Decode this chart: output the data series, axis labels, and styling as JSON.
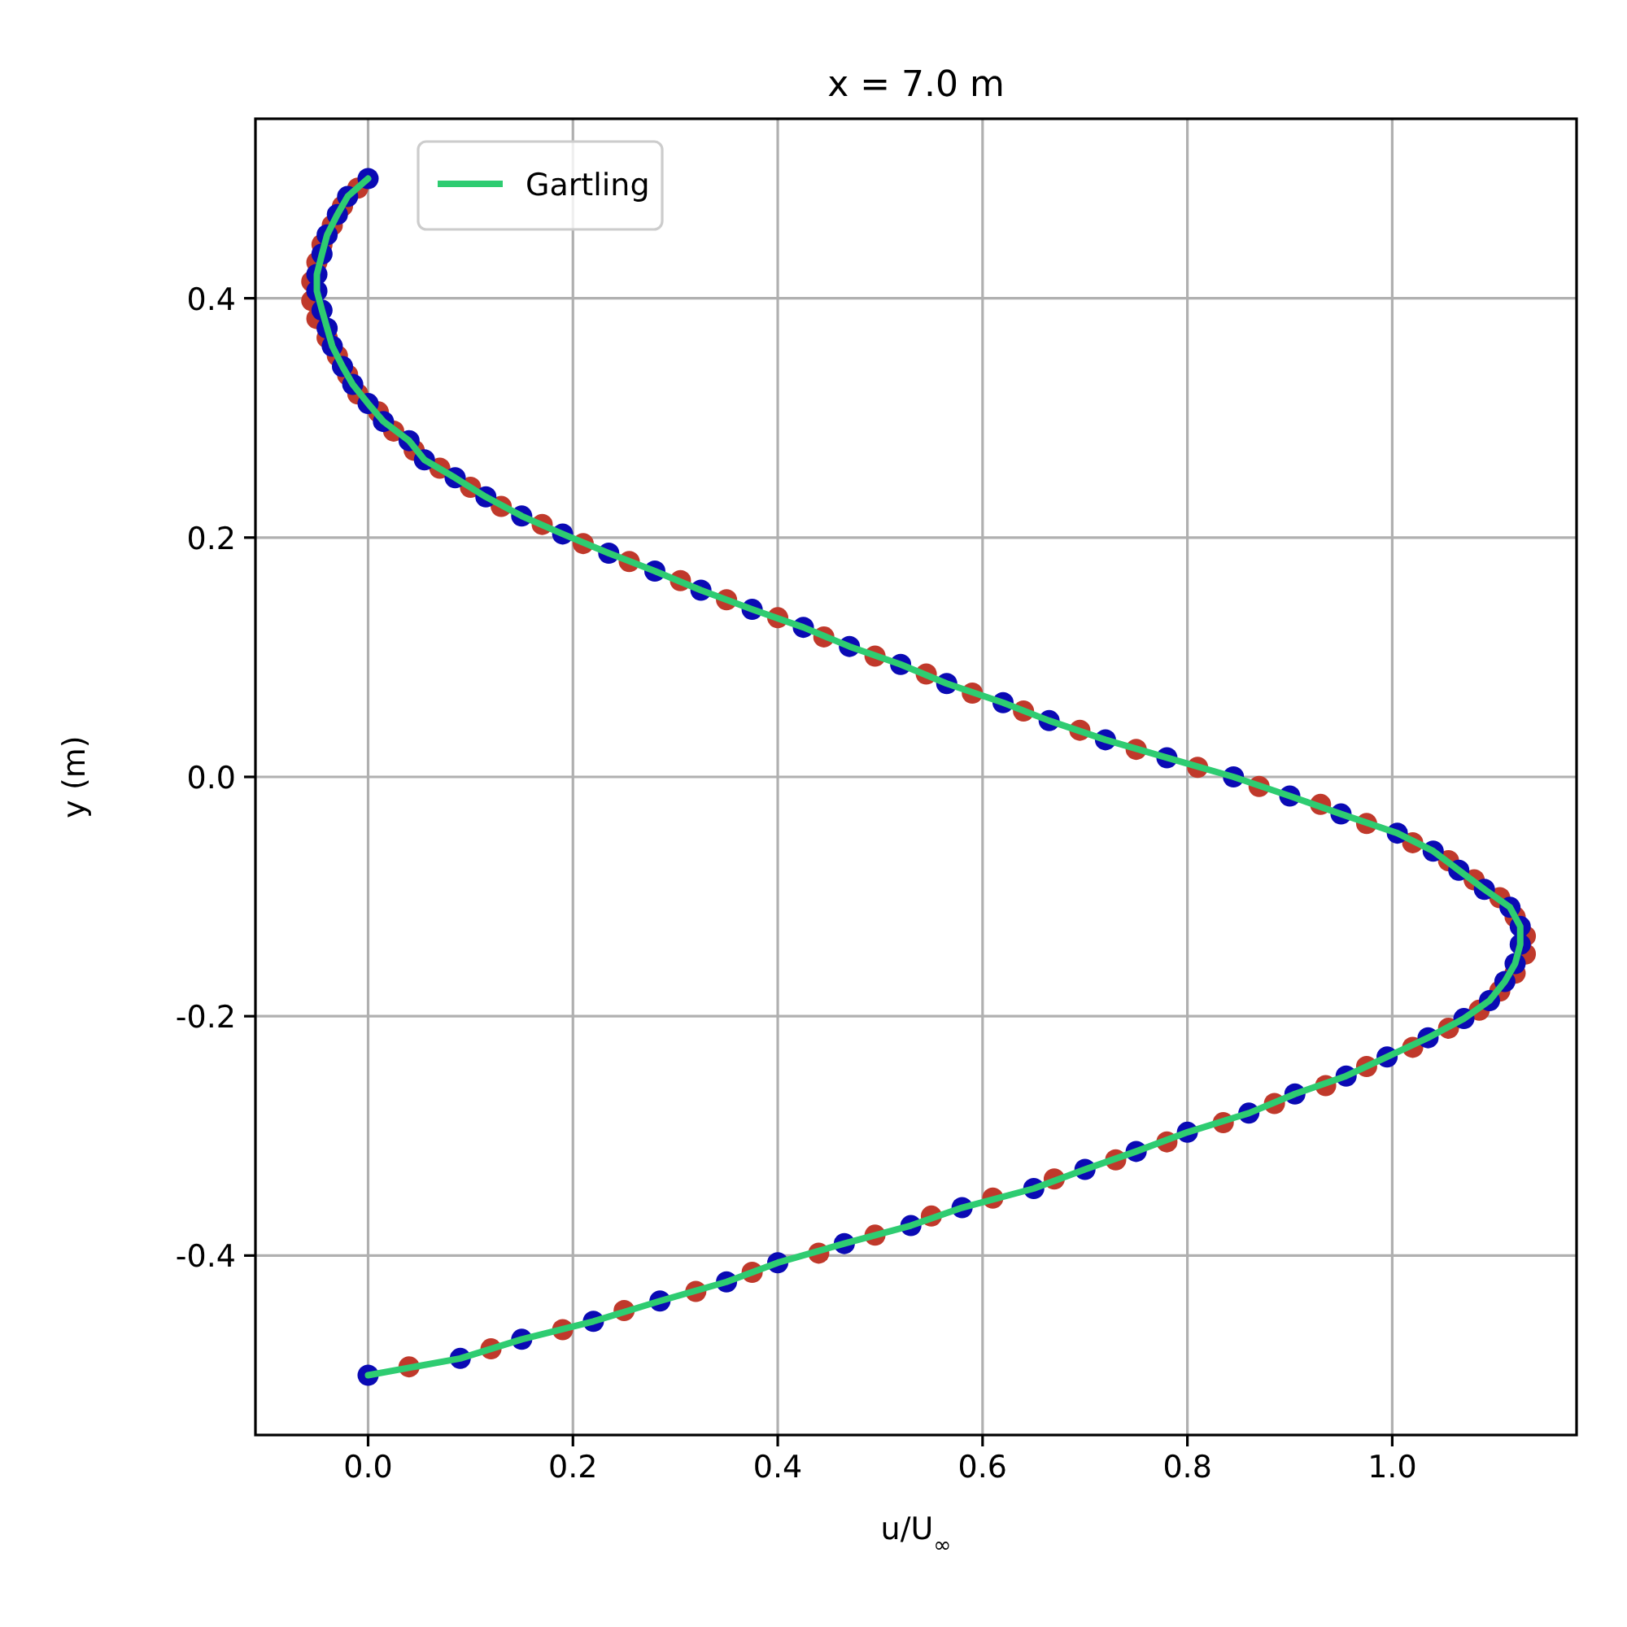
{
  "chart_data": {
    "type": "line",
    "title": "x = 7.0 m",
    "xlabel": "u/U$_{∞}$",
    "ylabel": "y (m)",
    "xlim": [
      -0.11,
      1.18
    ],
    "ylim": [
      -0.55,
      0.55
    ],
    "xticks": [
      {
        "value": 0,
        "label": "0.0"
      },
      0.2,
      0.4,
      0.6,
      0.8,
      {
        "value": 1,
        "label": "1.0"
      }
    ],
    "yticks": [
      -0.4,
      -0.2,
      {
        "value": 0,
        "label": "0.0"
      },
      0.2,
      0.4
    ],
    "grid": true,
    "legend": "top left",
    "series": [
      {
        "name": "Gartling",
        "color": "#2ecc71",
        "marker": "none",
        "line_style": "solid",
        "x": [
          0,
          0.09,
          0.15,
          0.22,
          0.285,
          0.35,
          0.4,
          0.465,
          0.53,
          0.58,
          0.65,
          0.7,
          0.75,
          0.8,
          0.86,
          0.905,
          0.955,
          0.995,
          1.035,
          1.07,
          1.095,
          1.11,
          1.12,
          1.125,
          1.125,
          1.115,
          1.09,
          1.065,
          1.04,
          1.005,
          0.95,
          0.9,
          0.845,
          0.78,
          0.72,
          0.665,
          0.62,
          0.565,
          0.52,
          0.47,
          0.425,
          0.375,
          0.325,
          0.28,
          0.235,
          0.19,
          0.15,
          0.115,
          0.085,
          0.055,
          0.04,
          0.015,
          0.0,
          -0.015,
          -0.025,
          -0.035,
          -0.04,
          -0.045,
          -0.05,
          -0.05,
          -0.045,
          -0.04,
          -0.03,
          -0.02,
          0.0
        ],
        "values": [
          -0.5,
          -0.486,
          -0.47,
          -0.455,
          -0.438,
          -0.422,
          -0.406,
          -0.39,
          -0.375,
          -0.36,
          -0.344,
          -0.328,
          -0.313,
          -0.297,
          -0.281,
          -0.265,
          -0.25,
          -0.234,
          -0.218,
          -0.202,
          -0.187,
          -0.171,
          -0.156,
          -0.14,
          -0.125,
          -0.109,
          -0.094,
          -0.078,
          -0.062,
          -0.047,
          -0.031,
          -0.016,
          0.0,
          0.016,
          0.031,
          0.047,
          0.062,
          0.078,
          0.094,
          0.109,
          0.125,
          0.14,
          0.156,
          0.172,
          0.187,
          0.203,
          0.218,
          0.234,
          0.25,
          0.265,
          0.281,
          0.297,
          0.312,
          0.328,
          0.343,
          0.36,
          0.375,
          0.39,
          0.406,
          0.42,
          0.437,
          0.453,
          0.47,
          0.485,
          0.5
        ]
      },
      {
        "type": "scatter",
        "color": "#c0392b",
        "marker": "circle",
        "x": [
          0.04,
          0.12,
          0.19,
          0.25,
          0.32,
          0.375,
          0.44,
          0.495,
          0.55,
          0.61,
          0.67,
          0.73,
          0.78,
          0.835,
          0.885,
          0.935,
          0.975,
          1.02,
          1.055,
          1.085,
          1.105,
          1.12,
          1.13,
          1.13,
          1.12,
          1.105,
          1.08,
          1.055,
          1.02,
          0.975,
          0.93,
          0.87,
          0.81,
          0.75,
          0.695,
          0.64,
          0.59,
          0.545,
          0.495,
          0.445,
          0.4,
          0.35,
          0.305,
          0.255,
          0.21,
          0.17,
          0.13,
          0.1,
          0.07,
          0.045,
          0.025,
          0.01,
          -0.01,
          -0.02,
          -0.03,
          -0.04,
          -0.05,
          -0.055,
          -0.055,
          -0.05,
          -0.045,
          -0.035,
          -0.025,
          -0.01
        ],
        "values": [
          -0.493,
          -0.478,
          -0.462,
          -0.446,
          -0.43,
          -0.414,
          -0.398,
          -0.383,
          -0.367,
          -0.352,
          -0.336,
          -0.32,
          -0.305,
          -0.289,
          -0.273,
          -0.258,
          -0.242,
          -0.226,
          -0.21,
          -0.195,
          -0.179,
          -0.164,
          -0.148,
          -0.133,
          -0.117,
          -0.101,
          -0.086,
          -0.07,
          -0.055,
          -0.039,
          -0.023,
          -0.008,
          0.008,
          0.023,
          0.039,
          0.055,
          0.07,
          0.086,
          0.101,
          0.117,
          0.133,
          0.148,
          0.164,
          0.18,
          0.195,
          0.211,
          0.226,
          0.242,
          0.258,
          0.273,
          0.289,
          0.305,
          0.32,
          0.336,
          0.352,
          0.367,
          0.383,
          0.398,
          0.414,
          0.43,
          0.445,
          0.461,
          0.477,
          0.492
        ]
      },
      {
        "type": "scatter",
        "color": "#0a0ab4",
        "marker": "circle",
        "x": [
          0,
          0.09,
          0.15,
          0.22,
          0.285,
          0.35,
          0.4,
          0.465,
          0.53,
          0.58,
          0.65,
          0.7,
          0.75,
          0.8,
          0.86,
          0.905,
          0.955,
          0.995,
          1.035,
          1.07,
          1.095,
          1.11,
          1.12,
          1.125,
          1.125,
          1.115,
          1.09,
          1.065,
          1.04,
          1.005,
          0.95,
          0.9,
          0.845,
          0.78,
          0.72,
          0.665,
          0.62,
          0.565,
          0.52,
          0.47,
          0.425,
          0.375,
          0.325,
          0.28,
          0.235,
          0.19,
          0.15,
          0.115,
          0.085,
          0.055,
          0.04,
          0.015,
          0.0,
          -0.015,
          -0.025,
          -0.035,
          -0.04,
          -0.045,
          -0.05,
          -0.05,
          -0.045,
          -0.04,
          -0.03,
          -0.02,
          0.0
        ],
        "values": [
          -0.5,
          -0.486,
          -0.47,
          -0.455,
          -0.438,
          -0.422,
          -0.406,
          -0.39,
          -0.375,
          -0.36,
          -0.344,
          -0.328,
          -0.313,
          -0.297,
          -0.281,
          -0.265,
          -0.25,
          -0.234,
          -0.218,
          -0.202,
          -0.187,
          -0.171,
          -0.156,
          -0.14,
          -0.125,
          -0.109,
          -0.094,
          -0.078,
          -0.062,
          -0.047,
          -0.031,
          -0.016,
          0.0,
          0.016,
          0.031,
          0.047,
          0.062,
          0.078,
          0.094,
          0.109,
          0.125,
          0.14,
          0.156,
          0.172,
          0.187,
          0.203,
          0.218,
          0.234,
          0.25,
          0.265,
          0.281,
          0.297,
          0.312,
          0.328,
          0.343,
          0.36,
          0.375,
          0.39,
          0.406,
          0.42,
          0.437,
          0.453,
          0.47,
          0.485,
          0.5
        ]
      }
    ]
  }
}
